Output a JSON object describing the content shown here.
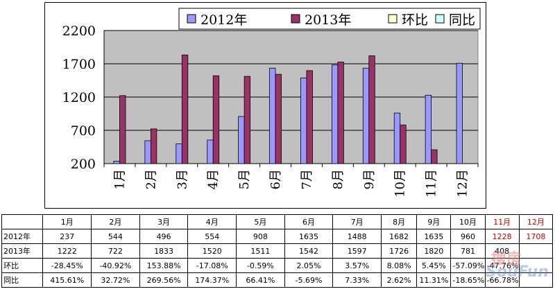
{
  "chart_data": {
    "type": "bar",
    "categories": [
      "1月",
      "2月",
      "3月",
      "4月",
      "5月",
      "6月",
      "7月",
      "8月",
      "9月",
      "10月",
      "11月",
      "12月"
    ],
    "series": [
      {
        "name": "2012年",
        "values": [
          237,
          544,
          496,
          554,
          908,
          1635,
          1488,
          1682,
          1635,
          960,
          1228,
          1708
        ],
        "color": "#9999ff"
      },
      {
        "name": "2013年",
        "values": [
          1222,
          722,
          1833,
          1520,
          1511,
          1542,
          1597,
          1726,
          1820,
          781,
          408,
          null
        ],
        "color": "#993366"
      }
    ],
    "legend_only": [
      {
        "name": "环比",
        "color": "#ffffcc"
      },
      {
        "name": "同比",
        "color": "#ccffff"
      }
    ],
    "y_ticks": [
      "2200",
      "1700",
      "1200",
      "700",
      "200"
    ],
    "ylim": [
      200,
      2200
    ],
    "grid": true,
    "legend": "top"
  },
  "table": {
    "header": [
      "",
      "1月",
      "2月",
      "3月",
      "4月",
      "5月",
      "6月",
      "7月",
      "8月",
      "9月",
      "10月",
      "11月",
      "12月"
    ],
    "rows": [
      [
        "2012年",
        "237",
        "544",
        "496",
        "554",
        "908",
        "1635",
        "1488",
        "1682",
        "1635",
        "960",
        "1228",
        "1708"
      ],
      [
        "2013年",
        "1222",
        "722",
        "1833",
        "1520",
        "1511",
        "1542",
        "1597",
        "1726",
        "1820",
        "781",
        "408",
        ""
      ],
      [
        "环比",
        "-28.45%",
        "-40.92%",
        "153.88%",
        "-17.08%",
        "-0.59%",
        "2.05%",
        "3.57%",
        "8.08%",
        "5.45%",
        "-57.09%",
        "-47.76%",
        ""
      ],
      [
        "同比",
        "415.61%",
        "32.72%",
        "269.56%",
        "174.37%",
        "66.41%",
        "-5.69%",
        "7.33%",
        "2.62%",
        "11.31%",
        "-18.65%",
        "-66.78%",
        ""
      ]
    ],
    "red_columns": [
      11,
      12
    ]
  },
  "watermark": {
    "brand": "搜房",
    "brand_latin": "SouFun"
  }
}
